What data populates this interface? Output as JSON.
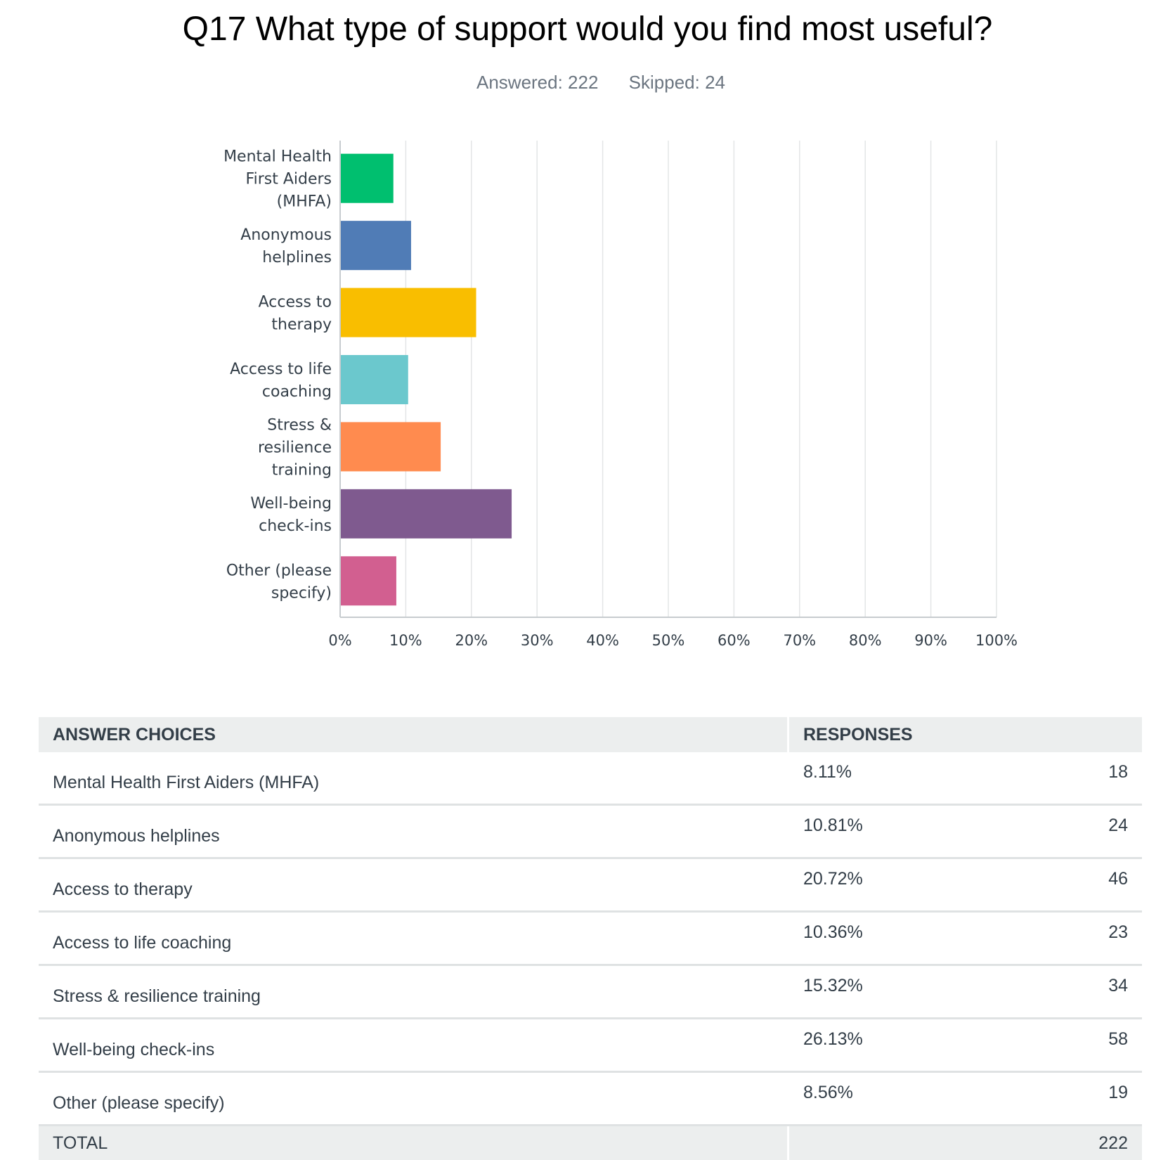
{
  "header": {
    "title": "Q17 What type of support would you find most useful?",
    "answered": "Answered: 222",
    "skipped": "Skipped: 24"
  },
  "chart_data": {
    "type": "bar",
    "orientation": "horizontal",
    "categories": [
      [
        "Mental Health",
        "First Aiders",
        "(MHFA)"
      ],
      [
        "Anonymous",
        "helplines"
      ],
      [
        "Access to",
        "therapy"
      ],
      [
        "Access to life",
        "coaching"
      ],
      [
        "Stress &",
        "resilience",
        "training"
      ],
      [
        "Well-being",
        "check-ins"
      ],
      [
        "Other (please",
        "specify)"
      ]
    ],
    "values": [
      8.11,
      10.81,
      20.72,
      10.36,
      15.32,
      26.13,
      8.56
    ],
    "colors": [
      "#00bf6f",
      "#507cb6",
      "#f9be00",
      "#6bc8cd",
      "#ff8b4f",
      "#7f5a8f",
      "#d25f90"
    ],
    "xlim": [
      0,
      100
    ],
    "x_ticks": [
      "0%",
      "10%",
      "20%",
      "30%",
      "40%",
      "50%",
      "60%",
      "70%",
      "80%",
      "90%",
      "100%"
    ],
    "grid": true
  },
  "table": {
    "headers": [
      "ANSWER CHOICES",
      "RESPONSES"
    ],
    "rows": [
      {
        "choice": "Mental Health First Aiders (MHFA)",
        "percent": "8.11%",
        "count": "18"
      },
      {
        "choice": "Anonymous helplines",
        "percent": "10.81%",
        "count": "24"
      },
      {
        "choice": "Access to therapy",
        "percent": "20.72%",
        "count": "46"
      },
      {
        "choice": "Access to life coaching",
        "percent": "10.36%",
        "count": "23"
      },
      {
        "choice": "Stress & resilience training",
        "percent": "15.32%",
        "count": "34"
      },
      {
        "choice": "Well-being check-ins",
        "percent": "26.13%",
        "count": "58"
      },
      {
        "choice": "Other (please specify)",
        "percent": "8.56%",
        "count": "19"
      }
    ],
    "total_label": "TOTAL",
    "total_count": "222"
  }
}
